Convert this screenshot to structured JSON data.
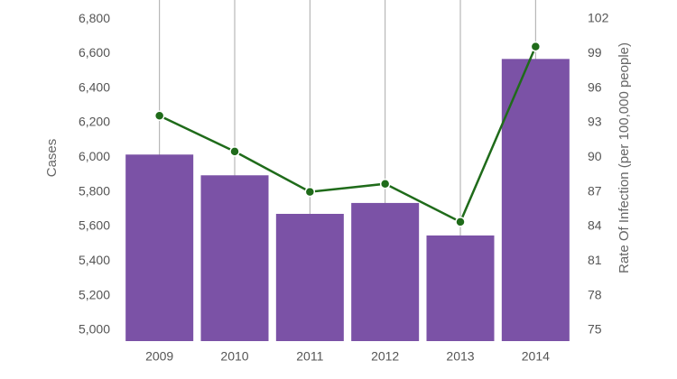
{
  "chart_data": {
    "type": "bar-line",
    "y_label": "Cases",
    "y2_label": "Rate Of Infection (per 100,000 people)",
    "categories": [
      "2009",
      "2010",
      "2011",
      "2012",
      "2013",
      "2014"
    ],
    "series": [
      {
        "type": "bar",
        "color": "#7b52a6",
        "values": [
          6016,
          5896,
          5673,
          5736,
          5548,
          6569
        ]
      },
      {
        "type": "line",
        "axis": "y2",
        "color": "#1f6b1a",
        "values": [
          93.6,
          90.5,
          87.0,
          87.7,
          84.4,
          99.6
        ]
      }
    ],
    "ylim": [
      4937,
      6910
    ],
    "yticks": [
      {
        "value": 5000,
        "label": "5,000"
      },
      {
        "value": 5200,
        "label": "5,200"
      },
      {
        "value": 5400,
        "label": "5,400"
      },
      {
        "value": 5600,
        "label": "5,600"
      },
      {
        "value": 5800,
        "label": "5,800"
      },
      {
        "value": 6000,
        "label": "6,000"
      },
      {
        "value": 6200,
        "label": "6,200"
      },
      {
        "value": 6400,
        "label": "6,400"
      },
      {
        "value": 6600,
        "label": "6,600"
      },
      {
        "value": 6800,
        "label": "6,800"
      }
    ],
    "y2lim": [
      74.06,
      103.64
    ],
    "y2ticks": [
      75,
      78,
      81,
      84,
      87,
      90,
      93,
      96,
      99,
      102
    ],
    "grid": true
  }
}
